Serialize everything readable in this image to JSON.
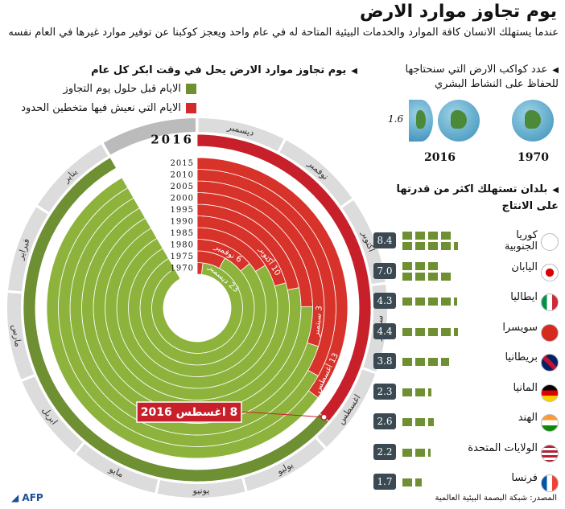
{
  "title": "يوم تجاوز موارد الارض",
  "subtitle": "عندما يستهلك الانسان كافة الموارد والخدمات البيئية المتاحة له في عام واحد ويعجز كوكبنا عن توفير موارد غيرها في العام نفسه",
  "left_header": "يوم تجاوز موارد الارض يحل في وقت ابكر كل عام",
  "legend": [
    {
      "label": "الايام قبل حلول يوم التجاوز",
      "color": "#6e8f32"
    },
    {
      "label": "الايام التي نعيش فيها متخطين الحدود",
      "color": "#d42a2a"
    }
  ],
  "chart_data": {
    "type": "radial-bar",
    "years": [
      "1970",
      "1975",
      "1980",
      "1985",
      "1990",
      "1995",
      "2000",
      "2005",
      "2010",
      "2015",
      "2016"
    ],
    "overshoot_dates": [
      "1970-12-23",
      "1975-11-29",
      "1980-11-06",
      "1985-10-28",
      "1990-10-10",
      "1995-10-05",
      "2000-09-23",
      "2005-09-03",
      "2010-08-21",
      "2015-08-13",
      "2016-08-08"
    ],
    "months": [
      "يناير",
      "فبراير",
      "مارس",
      "ابريل",
      "مايو",
      "يونيو",
      "يوليو",
      "اغسطس",
      "سبتمبر",
      "اكتوبر",
      "نوفمبر",
      "ديسمبر"
    ],
    "annotations": [
      {
        "year": "1970",
        "label": "23 ديسمبر"
      },
      {
        "year": "1980",
        "label": "6 نوفمبر"
      },
      {
        "year": "1990",
        "label": "10 أكتوبر"
      },
      {
        "year": "2005",
        "label": "3 سبتمبر"
      },
      {
        "year": "2015",
        "label": "13 أغسطس"
      }
    ],
    "callout": "8 اغسطس 2016",
    "colors": {
      "green": "#8db33d",
      "red": "#d7332a",
      "green_2016": "#6e8f32",
      "red_2016": "#c8202a",
      "month_band": "#dcdcdc"
    }
  },
  "planets": {
    "header": "عدد كواكب الارض التي سنحتاجها للحفاظ على النشاط البشري",
    "items": [
      {
        "year": "1970",
        "value": "1"
      },
      {
        "year": "2016",
        "value": "1.6"
      }
    ]
  },
  "countries_header": "بلدان تستهلك اكثر من قدرتها على الانتاج",
  "countries": [
    {
      "name": "كوريا الجنوبية",
      "value": "8.4",
      "flag": "korea"
    },
    {
      "name": "اليابان",
      "value": "7.0",
      "flag": "japan"
    },
    {
      "name": "ايطاليا",
      "value": "4.3",
      "flag": "italy"
    },
    {
      "name": "سويسرا",
      "value": "4.4",
      "flag": "switzerland"
    },
    {
      "name": "بريطانيا",
      "value": "3.8",
      "flag": "uk"
    },
    {
      "name": "المانيا",
      "value": "2.3",
      "flag": "germany"
    },
    {
      "name": "الهند",
      "value": "2.6",
      "flag": "india"
    },
    {
      "name": "الولايات المتحدة",
      "value": "2.2",
      "flag": "usa"
    },
    {
      "name": "فرنسا",
      "value": "1.7",
      "flag": "france"
    }
  ],
  "source": "المصدر: شبكة البصمة البيئية العالمية",
  "logo": "AFP"
}
